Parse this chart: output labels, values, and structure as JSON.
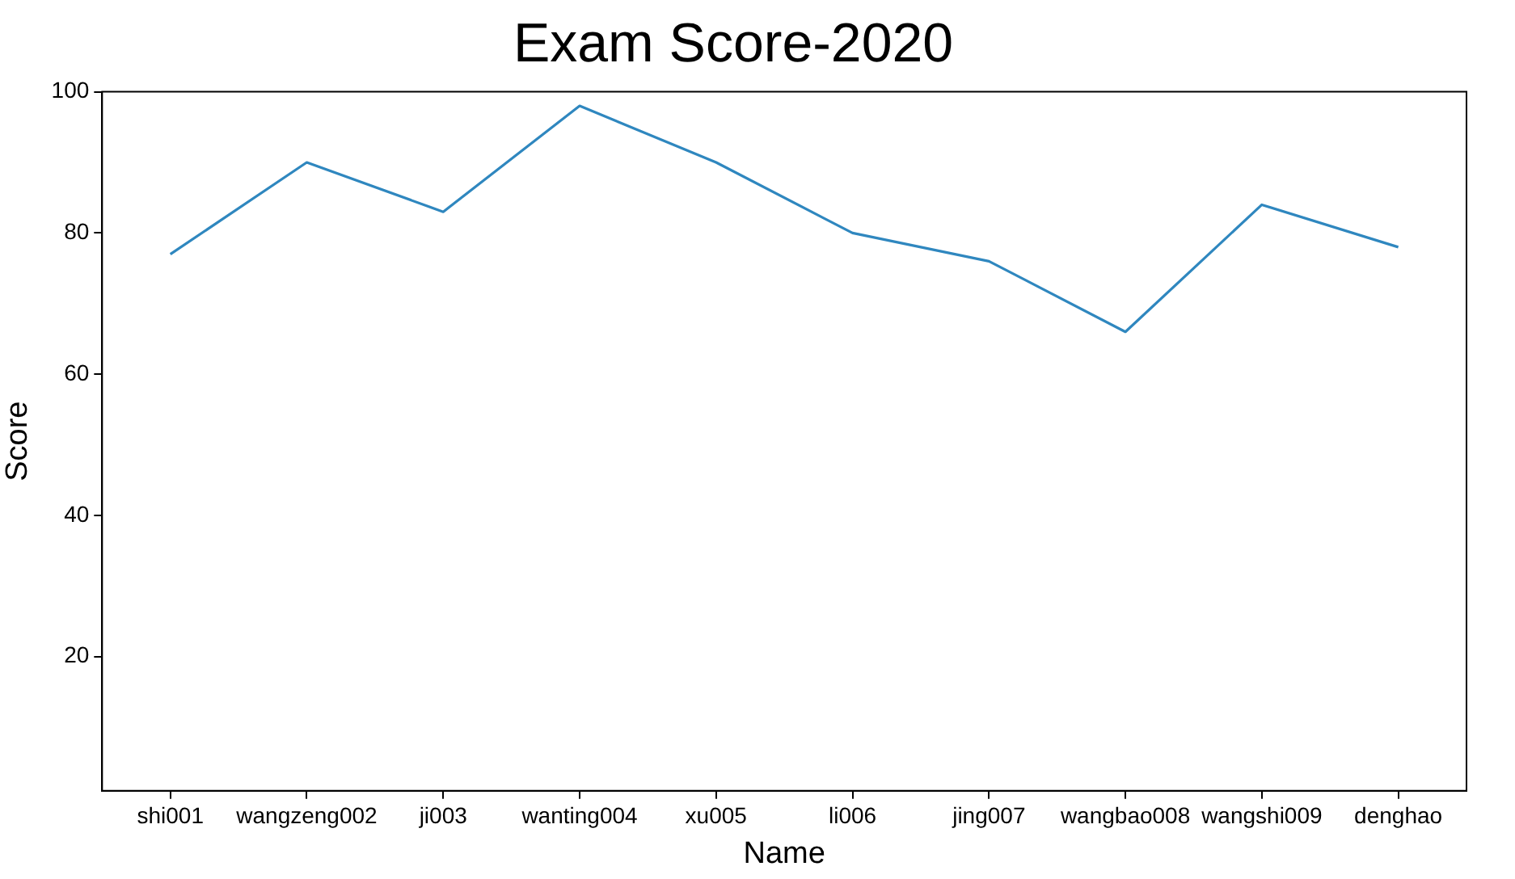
{
  "chart_data": {
    "type": "line",
    "title": "Exam Score-2020",
    "xlabel": "Name",
    "ylabel": "Score",
    "categories": [
      "shi001",
      "wangzeng002",
      "ji003",
      "wanting004",
      "xu005",
      "li006",
      "jing007",
      "wangbao008",
      "wangshi009",
      "denghao"
    ],
    "series": [
      {
        "color": "#2f87bf",
        "values": [
          77,
          90,
          83,
          98,
          90,
          80,
          76,
          66,
          84,
          78
        ]
      }
    ],
    "ylim": [
      1,
      100
    ],
    "yticks": [
      20,
      40,
      60,
      80,
      100
    ],
    "grid": false,
    "legend": false,
    "marker": "none",
    "line_style": "solid"
  }
}
